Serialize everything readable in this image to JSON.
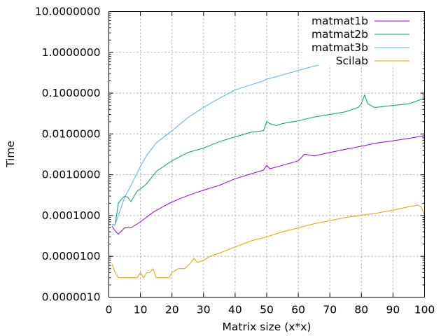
{
  "chart_data": {
    "type": "line",
    "title": "",
    "xlabel": "Matrix size (x*x)",
    "ylabel": "Time",
    "xlim": [
      0,
      100
    ],
    "ylim": [
      1e-06,
      10
    ],
    "y_scale": "log",
    "grid": true,
    "legend_position": "top-right",
    "x_ticks": [
      "0",
      "10",
      "20",
      "30",
      "40",
      "50",
      "60",
      "70",
      "80",
      "90",
      "100"
    ],
    "y_ticks": [
      "0.0000010",
      "0.0000100",
      "0.0001000",
      "0.0010000",
      "0.0100000",
      "0.1000000",
      "1.0000000",
      "10.0000000"
    ],
    "series": [
      {
        "name": "matmat1b",
        "color": "#9400d3",
        "x": [
          1,
          2,
          3,
          5,
          7,
          10,
          14,
          18,
          22,
          26,
          30,
          35,
          40,
          45,
          49,
          50,
          51,
          55,
          60,
          62,
          65,
          70,
          75,
          80,
          85,
          90,
          95,
          100
        ],
        "y": [
          5.5e-05,
          4.2e-05,
          3.5e-05,
          5e-05,
          5e-05,
          7e-05,
          0.00012,
          0.00018,
          0.00025,
          0.00033,
          0.00042,
          0.00055,
          0.0008,
          0.00105,
          0.0013,
          0.0017,
          0.0014,
          0.0017,
          0.0022,
          0.0032,
          0.0029,
          0.0035,
          0.0042,
          0.005,
          0.006,
          0.0068,
          0.0078,
          0.009
        ]
      },
      {
        "name": "matmat2b",
        "color": "#009e73",
        "x": [
          1,
          2,
          3,
          4,
          5,
          6,
          7,
          8,
          9,
          10,
          12,
          15,
          20,
          25,
          30,
          35,
          40,
          45,
          49,
          50,
          51,
          53,
          55,
          60,
          65,
          70,
          75,
          79,
          80,
          81,
          82,
          84,
          85,
          90,
          95,
          100
        ],
        "y": [
          6e-05,
          6e-05,
          0.0002,
          0.00025,
          0.0003,
          0.00028,
          0.00022,
          0.0003,
          0.0004,
          0.00045,
          0.0006,
          0.0012,
          0.0022,
          0.0035,
          0.0045,
          0.0065,
          0.0085,
          0.011,
          0.012,
          0.02,
          0.018,
          0.016,
          0.018,
          0.021,
          0.026,
          0.03,
          0.035,
          0.045,
          0.055,
          0.09,
          0.055,
          0.045,
          0.045,
          0.05,
          0.055,
          0.075
        ]
      },
      {
        "name": "matmat3b",
        "color": "#56b4e9",
        "x": [
          1,
          2,
          3,
          5,
          7,
          10,
          12,
          15,
          20,
          25,
          30,
          35,
          40,
          45,
          49,
          50,
          51,
          55,
          60,
          65,
          70,
          75,
          80,
          85,
          90,
          95,
          100
        ],
        "y": [
          6e-05,
          6e-05,
          0.0001,
          0.00028,
          0.00055,
          0.0016,
          0.003,
          0.006,
          0.012,
          0.025,
          0.045,
          0.075,
          0.12,
          0.16,
          0.2,
          0.22,
          0.23,
          0.28,
          0.36,
          0.46,
          0.56,
          0.68,
          0.8,
          0.95,
          1.1,
          1.3,
          1.6
        ]
      },
      {
        "name": "Scilab",
        "color": "#e69f00",
        "x": [
          1,
          2,
          3,
          5,
          7,
          9,
          10,
          11,
          12,
          13,
          14,
          15,
          17,
          19,
          20,
          22,
          24,
          26,
          27,
          28,
          30,
          32,
          35,
          40,
          45,
          50,
          55,
          60,
          65,
          70,
          75,
          80,
          85,
          90,
          95,
          98,
          99,
          100
        ],
        "y": [
          6.5e-06,
          4e-06,
          3e-06,
          3e-06,
          3e-06,
          3e-06,
          4e-06,
          3e-06,
          4e-06,
          4e-06,
          5e-06,
          3e-06,
          3e-06,
          3e-06,
          4e-06,
          5e-06,
          5e-06,
          7e-06,
          9e-06,
          7e-06,
          8e-06,
          1e-05,
          1.2e-05,
          1.7e-05,
          2.4e-05,
          3e-05,
          4e-05,
          5e-05,
          6.3e-05,
          7.5e-05,
          9e-05,
          0.000102,
          0.000115,
          0.000135,
          0.000165,
          0.00018,
          0.00016,
          0.0001
        ]
      }
    ]
  }
}
